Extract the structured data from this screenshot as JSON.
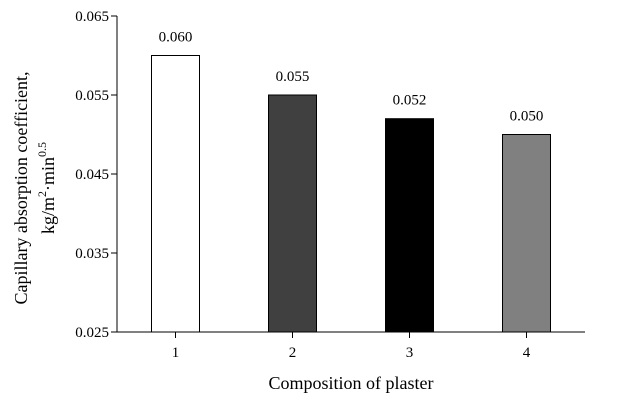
{
  "chart_data": {
    "type": "bar",
    "title": "",
    "xlabel": "Composition of plaster",
    "ylabel_line1": "Capillary absorption coefficient,",
    "ylabel_line2_parts": {
      "a": "kg/m",
      "b": "2",
      "c": "·min",
      "d": "0.5"
    },
    "categories": [
      "1",
      "2",
      "3",
      "4"
    ],
    "values": [
      0.06,
      0.055,
      0.052,
      0.05
    ],
    "value_labels": [
      "0.060",
      "0.055",
      "0.052",
      "0.050"
    ],
    "bar_colors": [
      "#ffffff",
      "#404040",
      "#000000",
      "#808080"
    ],
    "ylim": [
      0.025,
      0.065
    ],
    "yticks": [
      0.025,
      0.035,
      0.045,
      0.055,
      0.065
    ],
    "ytick_labels": [
      "0.025",
      "0.035",
      "0.045",
      "0.055",
      "0.065"
    ],
    "grid": false,
    "legend": "none"
  }
}
